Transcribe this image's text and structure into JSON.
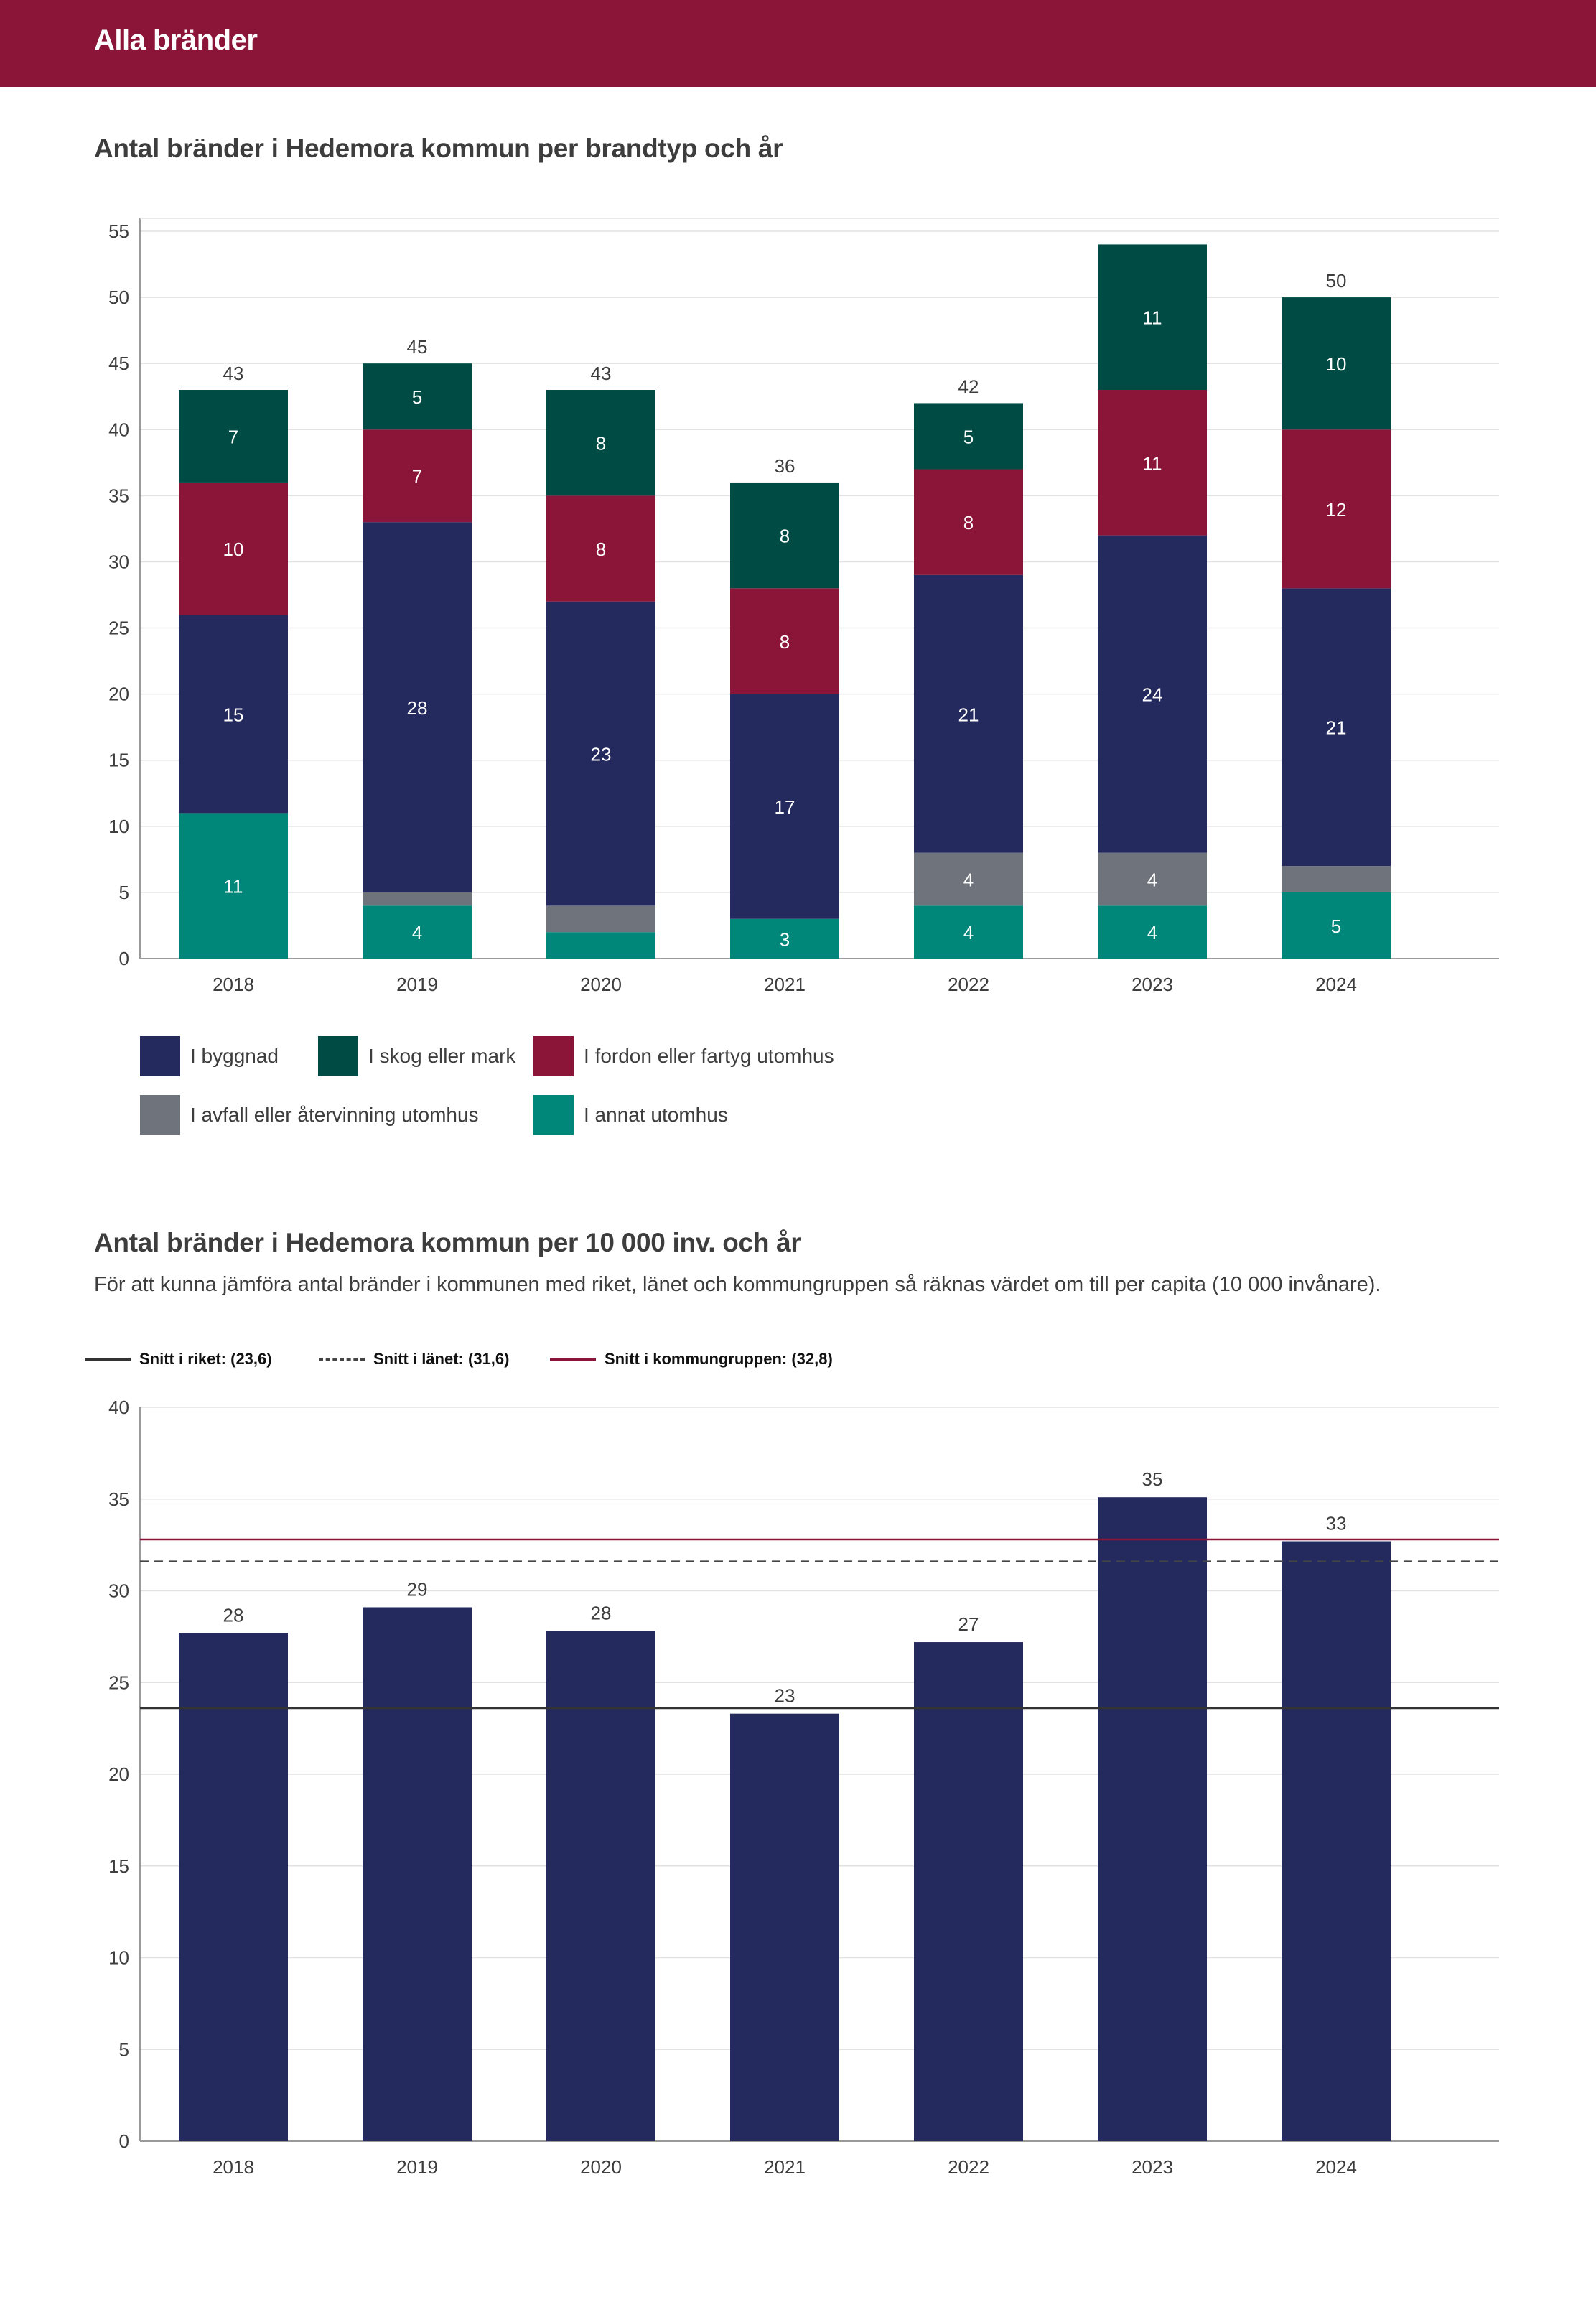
{
  "header": {
    "title": "Alla bränder"
  },
  "chart1": {
    "title": "Antal bränder i Hedemora kommun per brandtyp och år"
  },
  "chart2": {
    "title": "Antal bränder i Hedemora kommun per 10 000 inv. och år",
    "description": "För att kunna jämföra antal bränder i kommunen med riket, länet och kommungruppen så räknas värdet om till per capita (10 000 invånare)."
  },
  "chart_data": [
    {
      "type": "bar",
      "stacked": true,
      "title": "Antal bränder i Hedemora kommun per brandtyp och år",
      "categories": [
        "2018",
        "2019",
        "2020",
        "2021",
        "2022",
        "2023",
        "2024"
      ],
      "ylim": [
        0,
        55
      ],
      "yticks": [
        0,
        5,
        10,
        15,
        20,
        25,
        30,
        35,
        40,
        45,
        50,
        55
      ],
      "series": [
        {
          "name": "I annat utomhus",
          "color": "#00877a",
          "values": [
            11,
            4,
            2,
            3,
            4,
            4,
            5
          ],
          "labels": [
            "11",
            "4",
            "",
            "3",
            "4",
            "4",
            "5"
          ]
        },
        {
          "name": "I avfall eller återvinning utomhus",
          "color": "#6e737c",
          "values": [
            0,
            1,
            2,
            0,
            4,
            4,
            2
          ],
          "labels": [
            "",
            "",
            "",
            "",
            "4",
            "4",
            ""
          ]
        },
        {
          "name": "I byggnad",
          "color": "#252a5e",
          "values": [
            15,
            28,
            23,
            17,
            21,
            24,
            21
          ],
          "labels": [
            "15",
            "28",
            "23",
            "17",
            "21",
            "24",
            "21"
          ]
        },
        {
          "name": "I fordon eller fartyg utomhus",
          "color": "#8a1538",
          "values": [
            10,
            7,
            8,
            8,
            8,
            11,
            12
          ],
          "labels": [
            "10",
            "7",
            "8",
            "8",
            "8",
            "11",
            "12"
          ]
        },
        {
          "name": "I skog eller mark",
          "color": "#004c45",
          "values": [
            7,
            5,
            8,
            8,
            5,
            11,
            10
          ],
          "labels": [
            "7",
            "5",
            "8",
            "8",
            "5",
            "11",
            "10"
          ]
        }
      ],
      "totals": [
        "43",
        "45",
        "43",
        "36",
        "42",
        "",
        "50"
      ],
      "legend": [
        {
          "label": "I byggnad",
          "color": "#252a5e"
        },
        {
          "label": "I skog eller mark",
          "color": "#004c45"
        },
        {
          "label": "I fordon eller fartyg utomhus",
          "color": "#8a1538"
        },
        {
          "label": "I avfall eller återvinning utomhus",
          "color": "#6e737c"
        },
        {
          "label": "I annat utomhus",
          "color": "#00877a"
        }
      ]
    },
    {
      "type": "bar",
      "title": "Antal bränder i Hedemora kommun per 10 000 inv. och år",
      "categories": [
        "2018",
        "2019",
        "2020",
        "2021",
        "2022",
        "2023",
        "2024"
      ],
      "values": [
        27.7,
        29.1,
        27.8,
        23.3,
        27.2,
        35.1,
        32.7
      ],
      "labels": [
        "28",
        "29",
        "28",
        "23",
        "27",
        "35",
        "33"
      ],
      "bar_color": "#252a5e",
      "ylim": [
        0,
        40
      ],
      "yticks": [
        0,
        5,
        10,
        15,
        20,
        25,
        30,
        35,
        40
      ],
      "reference_lines": [
        {
          "label": "Snitt i riket: (23,6)",
          "value": 23.6,
          "color": "#333333",
          "style": "solid"
        },
        {
          "label": "Snitt i länet: (31,6)",
          "value": 31.6,
          "color": "#444444",
          "style": "dashed"
        },
        {
          "label": "Snitt i kommungruppen: (32,8)",
          "value": 32.8,
          "color": "#8a1538",
          "style": "solid"
        }
      ]
    }
  ]
}
